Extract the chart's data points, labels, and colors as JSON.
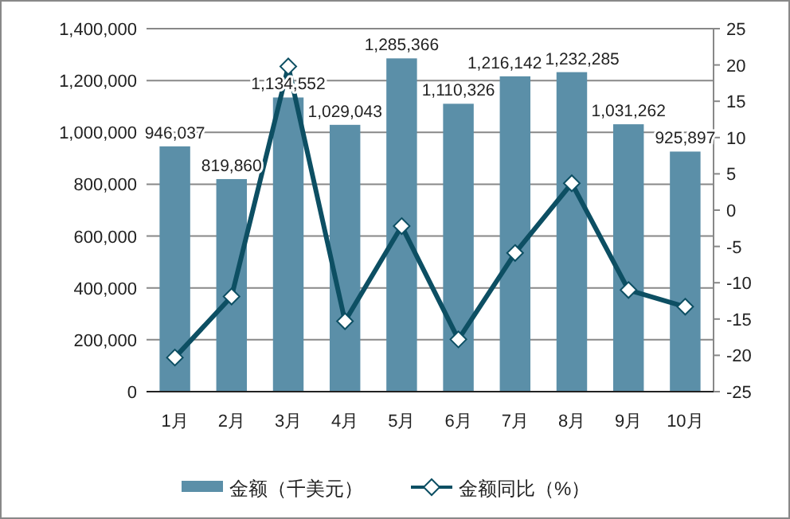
{
  "chart_data": {
    "type": "bar",
    "categories": [
      "1月",
      "2月",
      "3月",
      "4月",
      "5月",
      "6月",
      "7月",
      "8月",
      "9月",
      "10月"
    ],
    "series": [
      {
        "name": "金额（千美元）",
        "color": "#5b8fa8",
        "values": [
          946037,
          819860,
          1134552,
          1029043,
          1285366,
          1110326,
          1216142,
          1232285,
          1031262,
          925897
        ],
        "value_labels": [
          "946,037",
          "819,860",
          "1,134,552",
          "1,029,043",
          "1,285,366",
          "1,110,326",
          "1,216,142",
          "1,232,285",
          "1,031,262",
          "925,897"
        ]
      },
      {
        "name": "金额同比（%）",
        "type": "line",
        "axis": "y2",
        "color": "#0d4f63",
        "marker": "diamond",
        "values": [
          -20.3,
          -11.9,
          19.8,
          -15.3,
          -2.2,
          -17.8,
          -5.9,
          3.7,
          -11,
          -13.3
        ]
      }
    ],
    "ylim": [
      0,
      1400000
    ],
    "yticks": [
      0,
      {
        "value": 200000,
        "label": "200,000"
      },
      {
        "value": 400000,
        "label": "400,000"
      },
      {
        "value": 600000,
        "label": "600,000"
      },
      {
        "value": 800000,
        "label": "800,000"
      },
      {
        "value": 1000000,
        "label": "1,000,000"
      },
      {
        "value": 1200000,
        "label": "1,200,000"
      },
      {
        "value": 1400000,
        "label": "1,400,000"
      }
    ],
    "y2lim": [
      -25,
      25
    ],
    "y2ticks": [
      -25,
      -20,
      -15,
      -10,
      -5,
      0,
      5,
      10,
      15,
      20,
      25
    ],
    "grid": "y",
    "legend": "bottom"
  }
}
